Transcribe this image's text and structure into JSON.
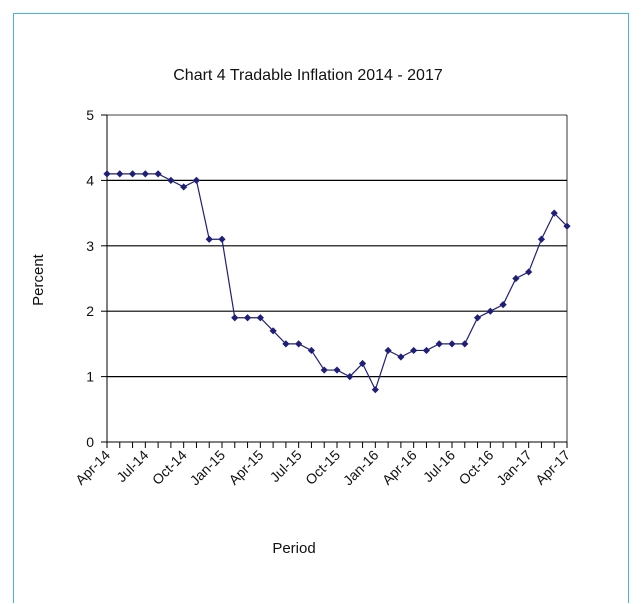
{
  "chart_data": {
    "type": "line",
    "title": "Chart 4 Tradable  Inflation 2014 - 2017",
    "xlabel": "Period",
    "ylabel": "Percent",
    "ylim": [
      0,
      5
    ],
    "yticks": [
      0,
      1,
      2,
      3,
      4,
      5
    ],
    "grid": true,
    "x_tick_labels": [
      "Apr-14",
      "Jul-14",
      "Oct-14",
      "Jan-15",
      "Apr-15",
      "Jul-15",
      "Oct-15",
      "Jan-16",
      "Apr-16",
      "Jul-16",
      "Oct-16",
      "Jan-17",
      "Apr-17"
    ],
    "categories": [
      "Apr-14",
      "May-14",
      "Jun-14",
      "Jul-14",
      "Aug-14",
      "Sep-14",
      "Oct-14",
      "Nov-14",
      "Dec-14",
      "Jan-15",
      "Feb-15",
      "Mar-15",
      "Apr-15",
      "May-15",
      "Jun-15",
      "Jul-15",
      "Aug-15",
      "Sep-15",
      "Oct-15",
      "Nov-15",
      "Dec-15",
      "Jan-16",
      "Feb-16",
      "Mar-16",
      "Apr-16",
      "May-16",
      "Jun-16",
      "Jul-16",
      "Aug-16",
      "Sep-16",
      "Oct-16",
      "Nov-16",
      "Dec-16",
      "Jan-17",
      "Feb-17",
      "Mar-17",
      "Apr-17"
    ],
    "values": [
      4.1,
      4.1,
      4.1,
      4.1,
      4.1,
      4.0,
      3.9,
      4.0,
      3.1,
      3.1,
      1.9,
      1.9,
      1.9,
      1.7,
      1.5,
      1.5,
      1.4,
      1.1,
      1.1,
      1.0,
      1.2,
      0.8,
      1.4,
      1.3,
      1.4,
      1.4,
      1.5,
      1.5,
      1.5,
      1.9,
      2.0,
      2.1,
      2.5,
      2.6,
      3.1,
      3.5,
      3.3
    ],
    "colors": {
      "line": "#1f1f7a",
      "marker": "#1f1f7a",
      "grid": "#000000",
      "frame": "#45b3e7"
    }
  }
}
